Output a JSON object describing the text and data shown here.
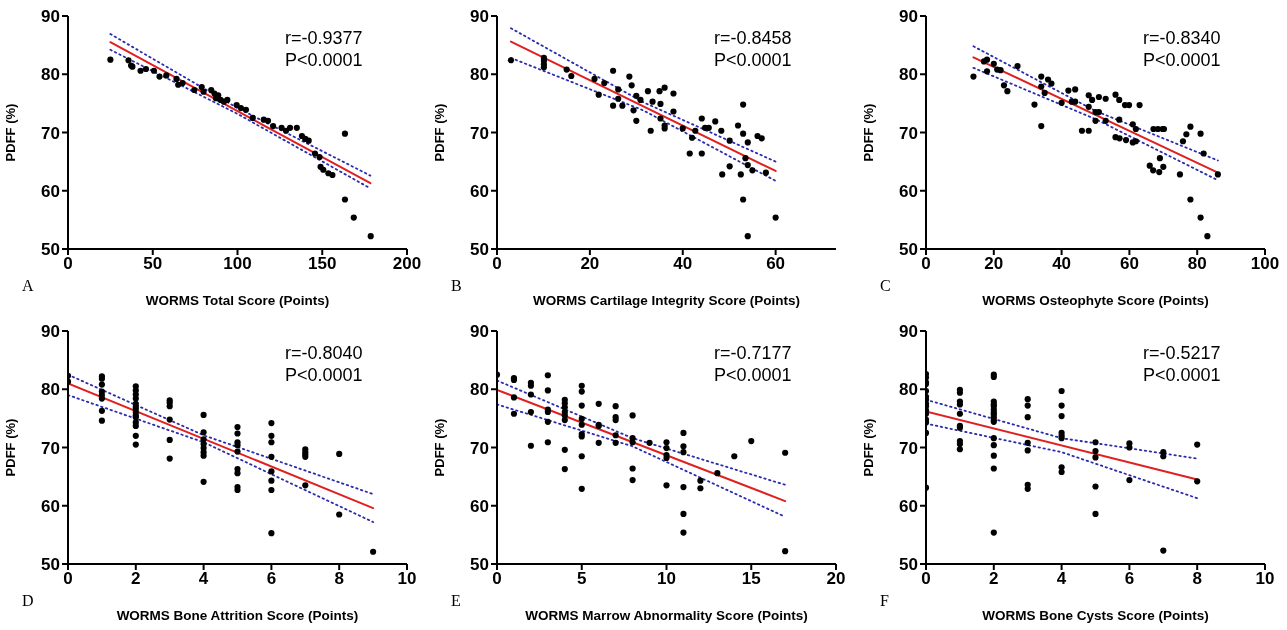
{
  "chart_data": [
    {
      "type": "scatter",
      "xlabel": "WORMS Total Score (Points)",
      "ylabel": "PDFF (%)",
      "xlim": [
        0,
        200
      ],
      "xticks": [
        0,
        50,
        100,
        150,
        200
      ],
      "ylim": [
        50,
        90
      ],
      "yticks": [
        50,
        60,
        70,
        80,
        90
      ],
      "annotations": [
        "r=-0.9377",
        "P<0.0001",
        "A"
      ],
      "series": [
        {
          "marker": "circle",
          "color": "#000000",
          "x": [
            25,
            35.7,
            37.2,
            38,
            42.8,
            46,
            50.7,
            54,
            58,
            64,
            65,
            67.6,
            74.5,
            78.9,
            80,
            84.5,
            86.4,
            87.3,
            88.6,
            90,
            92,
            94,
            99.5,
            102,
            105,
            109,
            115.5,
            118,
            121,
            126,
            128.6,
            131,
            135,
            138,
            140,
            142,
            145.7,
            148.4,
            149,
            150.6,
            153.6,
            156,
            163.4,
            163.4,
            168.6,
            178.6
          ],
          "values": [
            82.5,
            82.4,
            81.5,
            81.3,
            80.6,
            80.9,
            80.6,
            79.6,
            79.8,
            79.2,
            78.2,
            78.5,
            77.3,
            77.8,
            77,
            77.3,
            76.7,
            75.9,
            76.4,
            75.6,
            75.3,
            75.6,
            74.7,
            74.2,
            73.9,
            72.5,
            72.2,
            72,
            71.1,
            70.8,
            70.3,
            70.8,
            70.8,
            69.4,
            68.9,
            68.6,
            66.4,
            65.8,
            64.1,
            63.6,
            63,
            62.7,
            69.8,
            58.5,
            55.4,
            52.2
          ]
        },
        {
          "type": "line",
          "marker": "none",
          "line_style": "solid",
          "color": "#e02020",
          "x": [
            25,
            178.4
          ],
          "values": [
            85.5,
            61.3
          ]
        },
        {
          "type": "line",
          "marker": "none",
          "line_style": "dotted",
          "color": "#2b2bb0",
          "x": [
            25,
            100,
            178.4
          ],
          "values": [
            86.9,
            74.2,
            62.6
          ]
        },
        {
          "type": "line",
          "marker": "none",
          "line_style": "dotted",
          "color": "#2b2bb0",
          "x": [
            25,
            100,
            178.4
          ],
          "values": [
            84.2,
            73.2,
            60.4
          ]
        }
      ]
    },
    {
      "type": "scatter",
      "xlabel": "WORMS Cartilage Integrity Score (Points)",
      "ylabel": "PDFF (%)",
      "xlim": [
        0,
        73
      ],
      "xticks": [
        0,
        20,
        40,
        60
      ],
      "ylim": [
        50,
        90
      ],
      "yticks": [
        50,
        60,
        70,
        80,
        90
      ],
      "annotations": [
        "r=-0.8458",
        "P<0.0001",
        "B"
      ],
      "series": [
        {
          "marker": "circle",
          "color": "#000000",
          "x": [
            3,
            10.1,
            10.1,
            10.1,
            10.1,
            15,
            16,
            21,
            21.9,
            23.1,
            25,
            25,
            26.1,
            26.1,
            27,
            28.5,
            29,
            29.4,
            30,
            30,
            30.9,
            32.5,
            33.1,
            33.5,
            35,
            35.2,
            35.2,
            36.1,
            36.1,
            36.1,
            38,
            38,
            40,
            41.5,
            42,
            42.7,
            44.1,
            44.1,
            44.8,
            45.6,
            47,
            48.3,
            48.5,
            50.1,
            50.1,
            51.9,
            52.5,
            53,
            53,
            53,
            53.5,
            54,
            54,
            54,
            55,
            56.1,
            57,
            57.9,
            60
          ],
          "values": [
            82.4,
            82.8,
            82.3,
            81.7,
            81.2,
            80.8,
            79.7,
            79.2,
            76.5,
            78.5,
            80.6,
            74.6,
            77.4,
            75.8,
            74.6,
            79.6,
            78.1,
            73.8,
            76.3,
            72,
            75.6,
            77.1,
            70.3,
            75.3,
            77.1,
            74.9,
            72.4,
            77.7,
            71.2,
            70.7,
            76.7,
            73.6,
            70.7,
            66.4,
            69.1,
            70.3,
            72.4,
            66.4,
            70.8,
            70.8,
            71.9,
            70.3,
            62.8,
            68.6,
            64.2,
            71.2,
            62.8,
            74.8,
            69.8,
            58.5,
            65.6,
            68.3,
            64.4,
            52.2,
            63.5,
            69.4,
            69,
            63.1,
            55.4
          ]
        },
        {
          "type": "line",
          "marker": "none",
          "line_style": "solid",
          "color": "#e02020",
          "x": [
            3,
            60
          ],
          "values": [
            85.6,
            63.4
          ]
        },
        {
          "type": "line",
          "marker": "none",
          "line_style": "dotted",
          "color": "#2b2bb0",
          "x": [
            3,
            31.5,
            60
          ],
          "values": [
            87.9,
            75.2,
            65
          ]
        },
        {
          "type": "line",
          "marker": "none",
          "line_style": "dotted",
          "color": "#2b2bb0",
          "x": [
            3,
            31.5,
            60
          ],
          "values": [
            82.8,
            73.8,
            61.7
          ]
        }
      ]
    },
    {
      "type": "scatter",
      "xlabel": "WORMS Osteophyte Score (Points)",
      "ylabel": "PDFF (%)",
      "xlim": [
        0,
        100
      ],
      "xticks": [
        0,
        20,
        40,
        60,
        80,
        100
      ],
      "ylim": [
        50,
        90
      ],
      "yticks": [
        50,
        60,
        70,
        80,
        90
      ],
      "annotations": [
        "r=-0.8340",
        "P<0.0001",
        "C"
      ],
      "series": [
        {
          "marker": "circle",
          "color": "#000000",
          "x": [
            14,
            17.1,
            18,
            18,
            20,
            21,
            22,
            23,
            24,
            27,
            32,
            34,
            34,
            34,
            35,
            36,
            37,
            40,
            42,
            43,
            44,
            44,
            46,
            48,
            48,
            48,
            49,
            50,
            50,
            51,
            51,
            53,
            53,
            55.9,
            55.9,
            57,
            57,
            57.1,
            58.7,
            59,
            59.9,
            61,
            61,
            61.9,
            61.9,
            63,
            66,
            67,
            67.1,
            68.4,
            68.8,
            69,
            69.8,
            70,
            70.2,
            74.9,
            75.8,
            76.8,
            78,
            78,
            81,
            81,
            81.9,
            83,
            86.1
          ],
          "values": [
            79.6,
            82.2,
            82.5,
            80.5,
            81.8,
            80.8,
            80.7,
            78.1,
            77.1,
            81.4,
            74.8,
            79.6,
            77.9,
            71.1,
            76.8,
            79.1,
            78.4,
            75.1,
            77.2,
            75.3,
            77.4,
            75.3,
            70.3,
            70.3,
            76.4,
            74.4,
            75.6,
            73.5,
            72,
            76.1,
            73.5,
            75.8,
            72,
            76.5,
            69.2,
            75.6,
            72.2,
            69,
            74.7,
            68.7,
            74.7,
            71.4,
            68.3,
            70.6,
            68.5,
            74.7,
            64.3,
            63.5,
            70.6,
            70.6,
            63.2,
            65.6,
            70.6,
            64.1,
            70.6,
            62.8,
            68.5,
            69.7,
            71,
            58.5,
            69.8,
            55.4,
            66.4,
            52.2,
            62.8
          ]
        },
        {
          "type": "line",
          "marker": "none",
          "line_style": "solid",
          "color": "#e02020",
          "x": [
            14,
            86.1
          ],
          "values": [
            82.9,
            63.1
          ]
        },
        {
          "type": "line",
          "marker": "none",
          "line_style": "dotted",
          "color": "#2b2bb0",
          "x": [
            14,
            50,
            86.1
          ],
          "values": [
            84.8,
            73.7,
            65.2
          ]
        },
        {
          "type": "line",
          "marker": "none",
          "line_style": "dotted",
          "color": "#2b2bb0",
          "x": [
            14,
            50,
            86.1
          ],
          "values": [
            81.1,
            72.3,
            61.8
          ]
        }
      ]
    },
    {
      "type": "scatter",
      "xlabel": "WORMS Bone Attrition Score (Points)",
      "ylabel": "PDFF (%)",
      "xlim": [
        0,
        10
      ],
      "xticks": [
        0,
        2,
        4,
        6,
        8,
        10
      ],
      "ylim": [
        50,
        90
      ],
      "yticks": [
        50,
        60,
        70,
        80,
        90
      ],
      "annotations": [
        "r=-0.8040",
        "P<0.0001",
        "D"
      ],
      "series": [
        {
          "marker": "circle",
          "color": "#000000",
          "x": [
            0,
            0,
            1,
            1,
            1,
            1,
            1,
            1,
            1,
            1,
            2,
            2,
            2,
            2,
            2,
            2,
            2,
            2,
            2,
            2,
            2,
            2,
            2,
            2,
            3,
            3,
            3,
            3,
            3,
            3,
            4,
            4,
            4,
            4,
            4,
            4,
            4,
            4,
            5,
            5,
            5,
            5,
            5,
            5,
            5,
            5,
            5,
            6,
            6,
            6,
            6,
            6,
            6,
            6,
            6,
            7,
            7,
            7,
            7,
            7,
            8,
            8,
            9
          ],
          "values": [
            82.3,
            81.3,
            82.2,
            81.8,
            80.8,
            79.6,
            79,
            78.4,
            76.3,
            74.6,
            80.5,
            79.8,
            79.1,
            78.4,
            77.5,
            77,
            76.6,
            76.1,
            75.5,
            75.2,
            74.3,
            73.7,
            72,
            70.5,
            78.1,
            77.7,
            77.1,
            74.8,
            71.3,
            68.1,
            75.6,
            72.6,
            71.4,
            70.6,
            69.9,
            69.2,
            68.6,
            64.1,
            73.5,
            72.4,
            70.9,
            70.4,
            69.3,
            66.3,
            65.6,
            63.2,
            62.7,
            74.2,
            72,
            70.9,
            68.4,
            65.9,
            64.3,
            62.7,
            55.3,
            69.7,
            69.2,
            68.8,
            68.4,
            63.5,
            68.9,
            58.5,
            52.1
          ]
        },
        {
          "type": "line",
          "marker": "none",
          "line_style": "solid",
          "color": "#e02020",
          "x": [
            0,
            9
          ],
          "values": [
            81,
            59.6
          ]
        },
        {
          "type": "line",
          "marker": "none",
          "line_style": "dotted",
          "color": "#2b2bb0",
          "x": [
            0,
            4,
            9
          ],
          "values": [
            82.5,
            72.1,
            62
          ]
        },
        {
          "type": "line",
          "marker": "none",
          "line_style": "dotted",
          "color": "#2b2bb0",
          "x": [
            0,
            4,
            9
          ],
          "values": [
            79,
            70.9,
            57.2
          ]
        }
      ]
    },
    {
      "type": "scatter",
      "xlabel": "WORMS Marrow Abnormality Score (Points)",
      "ylabel": "PDFF (%)",
      "xlim": [
        0,
        20
      ],
      "xticks": [
        0,
        5,
        10,
        15,
        20
      ],
      "ylim": [
        50,
        90
      ],
      "yticks": [
        50,
        60,
        70,
        80,
        90
      ],
      "annotations": [
        "r=-0.7177",
        "P<0.0001",
        "E"
      ],
      "series": [
        {
          "marker": "circle",
          "color": "#000000",
          "x": [
            0,
            1,
            1,
            1,
            1,
            2,
            2,
            2,
            2,
            2,
            3,
            3,
            3,
            3,
            3,
            3,
            4,
            4,
            4,
            4,
            4,
            4,
            4,
            4,
            5,
            5,
            5,
            5,
            5,
            5,
            5,
            5,
            5,
            6,
            6,
            6,
            6,
            7,
            7,
            7,
            7,
            7,
            8,
            8,
            8,
            8,
            8,
            9,
            10,
            10,
            10,
            10,
            10,
            11,
            11,
            11,
            11,
            11,
            11,
            12,
            12,
            13,
            14,
            15,
            17,
            17
          ],
          "values": [
            82.5,
            81.9,
            81.6,
            78.6,
            75.8,
            81.1,
            80.6,
            79.1,
            76.1,
            70.3,
            82.4,
            79.8,
            76.5,
            76.1,
            74.4,
            70.9,
            78.2,
            77.6,
            76.9,
            76.1,
            75.5,
            74.7,
            69.6,
            66.3,
            80.6,
            79.6,
            77.2,
            74.9,
            73.9,
            72.3,
            71.9,
            68.5,
            62.9,
            77.5,
            73.9,
            73.7,
            70.8,
            77.1,
            75.2,
            74.7,
            72.1,
            70.8,
            75.5,
            71.6,
            70.9,
            66.4,
            64.4,
            70.8,
            70.9,
            69.9,
            68.7,
            68.2,
            63.5,
            72.5,
            70.2,
            69.2,
            63.2,
            58.6,
            55.4,
            64.3,
            63,
            65.6,
            68.5,
            71.1,
            69.1,
            52.2
          ]
        },
        {
          "type": "line",
          "marker": "none",
          "line_style": "solid",
          "color": "#e02020",
          "x": [
            0,
            17
          ],
          "values": [
            79.9,
            60.8
          ]
        },
        {
          "type": "line",
          "marker": "none",
          "line_style": "dotted",
          "color": "#2b2bb0",
          "x": [
            0,
            8,
            17
          ],
          "values": [
            81.5,
            71.6,
            63.6
          ]
        },
        {
          "type": "line",
          "marker": "none",
          "line_style": "dotted",
          "color": "#2b2bb0",
          "x": [
            0,
            8,
            17
          ],
          "values": [
            77.4,
            70.2,
            58.1
          ]
        }
      ]
    },
    {
      "type": "scatter",
      "xlabel": "WORMS Bone Cysts Score (Points)",
      "ylabel": "PDFF (%)",
      "xlim": [
        0,
        10
      ],
      "xticks": [
        0,
        2,
        4,
        6,
        8,
        10
      ],
      "ylim": [
        50,
        90
      ],
      "yticks": [
        50,
        60,
        70,
        80,
        90
      ],
      "annotations": [
        "r=-0.5217",
        "P<0.0001",
        "F"
      ],
      "series": [
        {
          "marker": "circle",
          "color": "#000000",
          "x": [
            0,
            0,
            0,
            0,
            0,
            0,
            0,
            0,
            0,
            0,
            0,
            0,
            0,
            0,
            0,
            1,
            1,
            1,
            1,
            1,
            1,
            1,
            1,
            1,
            1,
            2,
            2,
            2,
            2,
            2,
            2,
            2,
            2,
            2,
            2,
            2,
            2,
            2,
            2,
            2,
            2,
            3,
            3,
            3,
            3,
            3,
            3,
            3,
            4,
            4,
            4,
            4,
            4,
            4,
            4,
            4,
            5,
            5,
            5,
            5,
            5,
            6,
            6,
            6,
            7,
            7,
            7,
            8,
            8
          ],
          "values": [
            82.6,
            82,
            81.2,
            80.9,
            79.7,
            78.7,
            78.2,
            77.5,
            77.1,
            76.4,
            75.8,
            74.8,
            74.3,
            72.5,
            63.1,
            79.9,
            79.4,
            77.9,
            77.4,
            75.8,
            73.7,
            73.4,
            71.1,
            70.6,
            69.7,
            82.5,
            82.1,
            77.9,
            77.4,
            77.1,
            76.5,
            76,
            75.7,
            75.2,
            74.7,
            74.4,
            71.6,
            70.4,
            68.6,
            66.4,
            55.4,
            78.3,
            77.2,
            75.2,
            70.8,
            69.5,
            63.6,
            62.9,
            79.7,
            77.2,
            75.4,
            72.5,
            72,
            71.6,
            66.6,
            65.8,
            70.9,
            69.4,
            68.3,
            63.3,
            58.6,
            70.7,
            70,
            64.4,
            69.2,
            68.5,
            52.3,
            70.5,
            64.2
          ]
        },
        {
          "type": "line",
          "marker": "none",
          "line_style": "solid",
          "color": "#e02020",
          "x": [
            0,
            8
          ],
          "values": [
            76.2,
            64.5
          ]
        },
        {
          "type": "line",
          "marker": "none",
          "line_style": "dotted",
          "color": "#2b2bb0",
          "x": [
            0,
            4,
            8
          ],
          "values": [
            78.2,
            71.6,
            68.1
          ]
        },
        {
          "type": "line",
          "marker": "none",
          "line_style": "dotted",
          "color": "#2b2bb0",
          "x": [
            0,
            4,
            8
          ],
          "values": [
            74.1,
            69.2,
            61.3
          ]
        }
      ]
    }
  ]
}
